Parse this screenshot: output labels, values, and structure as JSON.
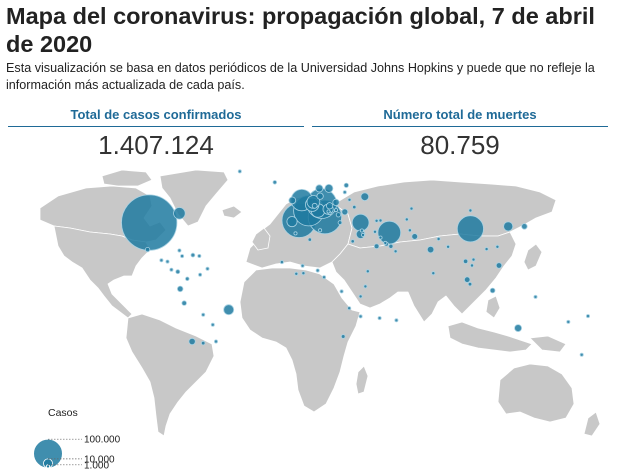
{
  "title": "Mapa del coronavirus: propagación global, 7 de abril de 2020",
  "subtitle": "Esta visualización se basa en datos periódicos de la Universidad Johns Hopkins y puede que no refleje la información más actualizada de cada país.",
  "stats": {
    "cases": {
      "label": "Total de casos confirmados",
      "value": "1.407.124"
    },
    "deaths": {
      "label": "Número total de muertes",
      "value": "80.759"
    }
  },
  "legend": {
    "title": "Casos",
    "items": [
      {
        "label": "100.000",
        "value": 100000
      },
      {
        "label": "10.000",
        "value": 10000
      },
      {
        "label": "1.000",
        "value": 1000
      }
    ]
  },
  "colors": {
    "land": "#c8c8c8",
    "bubble": "#1f7aa0",
    "bubble_stroke": "#a9d2e3",
    "header": "#1f6a97"
  },
  "bubbles": [
    {
      "name": "Estados Unidos",
      "lon": -98,
      "lat": 39,
      "value": 370000
    },
    {
      "name": "Canadá",
      "lon": -79,
      "lat": 45,
      "value": 16500
    },
    {
      "name": "México",
      "lon": -99,
      "lat": 22,
      "value": 2400
    },
    {
      "name": "Brasil",
      "lon": -48,
      "lat": -14,
      "value": 12200
    },
    {
      "name": "Chile",
      "lon": -71,
      "lat": -33,
      "value": 5100
    },
    {
      "name": "Ecuador",
      "lon": -78.5,
      "lat": -1.5,
      "value": 3700
    },
    {
      "name": "Perú",
      "lon": -76,
      "lat": -10,
      "value": 2600
    },
    {
      "name": "Argentina",
      "lon": -64,
      "lat": -34,
      "value": 1600
    },
    {
      "name": "Colombia",
      "lon": -74,
      "lat": 4.5,
      "value": 1580
    },
    {
      "name": "Panamá",
      "lon": -80,
      "lat": 8.8,
      "value": 1990
    },
    {
      "name": "República Dominicana",
      "lon": -70.5,
      "lat": 18.7,
      "value": 1750
    },
    {
      "name": "Venezuela",
      "lon": -66,
      "lat": 7,
      "value": 167
    },
    {
      "name": "Cuba",
      "lon": -79,
      "lat": 21.5,
      "value": 350
    },
    {
      "name": "Bolivia",
      "lon": -64,
      "lat": -17,
      "value": 200
    },
    {
      "name": "Uruguay",
      "lon": -56,
      "lat": -33,
      "value": 420
    },
    {
      "name": "Paraguay",
      "lon": -58,
      "lat": -23,
      "value": 110
    },
    {
      "name": "España",
      "lon": -3.7,
      "lat": 40.4,
      "value": 141000
    },
    {
      "name": "Italia",
      "lon": 12.5,
      "lat": 42.5,
      "value": 135500
    },
    {
      "name": "Alemania",
      "lon": 10.5,
      "lat": 51.2,
      "value": 107600
    },
    {
      "name": "Francia",
      "lon": 2.3,
      "lat": 46.6,
      "value": 110000
    },
    {
      "name": "Reino Unido",
      "lon": -2,
      "lat": 53.5,
      "value": 55200
    },
    {
      "name": "Turquía",
      "lon": 35,
      "lat": 39,
      "value": 34100
    },
    {
      "name": "Irán",
      "lon": 53,
      "lat": 32.5,
      "value": 62600
    },
    {
      "name": "Suiza",
      "lon": 8.2,
      "lat": 46.8,
      "value": 22200
    },
    {
      "name": "Bélgica",
      "lon": 4.5,
      "lat": 50.6,
      "value": 22200
    },
    {
      "name": "Países Bajos",
      "lon": 5.3,
      "lat": 52.3,
      "value": 19600
    },
    {
      "name": "Austria",
      "lon": 14.5,
      "lat": 47.6,
      "value": 12600
    },
    {
      "name": "Portugal",
      "lon": -8.2,
      "lat": 39.6,
      "value": 12400
    },
    {
      "name": "Suecia",
      "lon": 15,
      "lat": 61,
      "value": 7700
    },
    {
      "name": "Noruega",
      "lon": 9,
      "lat": 61,
      "value": 6100
    },
    {
      "name": "Dinamarca",
      "lon": 9.5,
      "lat": 56,
      "value": 5000
    },
    {
      "name": "Irlanda",
      "lon": -8,
      "lat": 53.3,
      "value": 5700
    },
    {
      "name": "Polonia",
      "lon": 19.5,
      "lat": 52,
      "value": 4800
    },
    {
      "name": "Chequia",
      "lon": 15.5,
      "lat": 49.8,
      "value": 4800
    },
    {
      "name": "Rumanía",
      "lon": 25,
      "lat": 45.9,
      "value": 4400
    },
    {
      "name": "Finlandia",
      "lon": 26,
      "lat": 63,
      "value": 2300
    },
    {
      "name": "Grecia",
      "lon": 22,
      "lat": 39,
      "value": 1800
    },
    {
      "name": "Ucrania",
      "lon": 31,
      "lat": 49,
      "value": 1460
    },
    {
      "name": "Serbia",
      "lon": 21,
      "lat": 44,
      "value": 2400
    },
    {
      "name": "Hungría",
      "lon": 19.5,
      "lat": 47,
      "value": 800
    },
    {
      "name": "Bielorrusia",
      "lon": 28,
      "lat": 53.7,
      "value": 1000
    },
    {
      "name": "Rusia (Moscú)",
      "lon": 37.6,
      "lat": 55.7,
      "value": 7500
    },
    {
      "name": "Israel",
      "lon": 35,
      "lat": 31.5,
      "value": 9000
    },
    {
      "name": "Arabia Saudí",
      "lon": 45,
      "lat": 24,
      "value": 2750
    },
    {
      "name": "Emiratos Árabes Unidos",
      "lon": 54,
      "lat": 24,
      "value": 2100
    },
    {
      "name": "Qatar",
      "lon": 51.2,
      "lat": 25.3,
      "value": 2000
    },
    {
      "name": "Pakistán",
      "lon": 69,
      "lat": 30,
      "value": 4000
    },
    {
      "name": "India",
      "lon": 79,
      "lat": 22,
      "value": 5300
    },
    {
      "name": "Egipto",
      "lon": 30,
      "lat": 27,
      "value": 1450
    },
    {
      "name": "Argelia",
      "lon": 3,
      "lat": 28,
      "value": 1470
    },
    {
      "name": "Marruecos",
      "lon": -6,
      "lat": 32,
      "value": 1200
    },
    {
      "name": "Kazajistán",
      "lon": 67,
      "lat": 48,
      "value": 700
    },
    {
      "name": "China",
      "lon": 104,
      "lat": 35,
      "value": 82700
    },
    {
      "name": "Corea del Sur",
      "lon": 127.8,
      "lat": 36.5,
      "value": 10300
    },
    {
      "name": "Japón",
      "lon": 138,
      "lat": 36.5,
      "value": 3900
    },
    {
      "name": "Filipinas",
      "lon": 122,
      "lat": 12.5,
      "value": 3700
    },
    {
      "name": "Malasia",
      "lon": 102,
      "lat": 4,
      "value": 3800
    },
    {
      "name": "Indonesia",
      "lon": 118,
      "lat": -2.5,
      "value": 2700
    },
    {
      "name": "Tailandia",
      "lon": 101,
      "lat": 15,
      "value": 2250
    },
    {
      "name": "Singapur",
      "lon": 103.8,
      "lat": 1.35,
      "value": 1480
    },
    {
      "name": "Australia",
      "lon": 134,
      "lat": -25,
      "value": 5800
    },
    {
      "name": "Nueva Zelanda",
      "lon": 174,
      "lat": -41,
      "value": 1160
    },
    {
      "name": "Sudáfrica",
      "lon": 24,
      "lat": -30,
      "value": 1680
    },
    {
      "name": "Camerún",
      "lon": 12,
      "lat": 5.5,
      "value": 650
    },
    {
      "name": "Costa de Marfil",
      "lon": -5.5,
      "lat": 7.5,
      "value": 300
    },
    {
      "name": "Ghana",
      "lon": -1,
      "lat": 7.9,
      "value": 300
    },
    {
      "name": "Nigeria",
      "lon": 8,
      "lat": 9.5,
      "value": 250
    },
    {
      "name": "Senegal",
      "lon": -14.5,
      "lat": 14.5,
      "value": 230
    },
    {
      "name": "Túnez",
      "lon": 9.5,
      "lat": 34,
      "value": 600
    },
    {
      "name": "Burkina Faso",
      "lon": -1.5,
      "lat": 12.3,
      "value": 360
    },
    {
      "name": "Kenia",
      "lon": 38,
      "lat": 0,
      "value": 170
    },
    {
      "name": "Islandia",
      "lon": -19,
      "lat": 65,
      "value": 1600
    },
    {
      "name": "Irak",
      "lon": 44,
      "lat": 33,
      "value": 1100
    },
    {
      "name": "Kuwait",
      "lon": 47.5,
      "lat": 29.3,
      "value": 740
    },
    {
      "name": "Bahréin",
      "lon": 50.5,
      "lat": 26,
      "value": 750
    },
    {
      "name": "Afganistán",
      "lon": 66,
      "lat": 34,
      "value": 420
    },
    {
      "name": "Bangladés",
      "lon": 90,
      "lat": 23.7,
      "value": 160
    },
    {
      "name": "Sri Lanka",
      "lon": 80.7,
      "lat": 7.9,
      "value": 180
    },
    {
      "name": "Vietnam",
      "lon": 106,
      "lat": 16,
      "value": 250
    },
    {
      "name": "Taiwán",
      "lon": 121,
      "lat": 23.7,
      "value": 380
    },
    {
      "name": "Hong Kong",
      "lon": 114.2,
      "lat": 22.3,
      "value": 930
    },
    {
      "name": "Croacia",
      "lon": 15.5,
      "lat": 45.1,
      "value": 1300
    },
    {
      "name": "Eslovenia",
      "lon": 14.8,
      "lat": 46.1,
      "value": 1090
    },
    {
      "name": "Estonia",
      "lon": 25,
      "lat": 58.6,
      "value": 1150
    },
    {
      "name": "Luxemburgo",
      "lon": 6.1,
      "lat": 49.8,
      "value": 2900
    },
    {
      "name": "Uzbekistán",
      "lon": 64,
      "lat": 41,
      "value": 450
    },
    {
      "name": "Azerbaiyán",
      "lon": 47.5,
      "lat": 40.3,
      "value": 640
    },
    {
      "name": "Armenia",
      "lon": 45,
      "lat": 40.1,
      "value": 850
    },
    {
      "name": "Omán",
      "lon": 57,
      "lat": 21,
      "value": 370
    },
    {
      "name": "Jordania",
      "lon": 36.5,
      "lat": 31,
      "value": 350
    },
    {
      "name": "Líbano",
      "lon": 35.8,
      "lat": 33.9,
      "value": 540
    },
    {
      "name": "Guatemala",
      "lon": -90.3,
      "lat": 15.6,
      "value": 70
    },
    {
      "name": "Honduras",
      "lon": -86.5,
      "lat": 14.8,
      "value": 300
    },
    {
      "name": "Costa Rica",
      "lon": -84,
      "lat": 10,
      "value": 450
    },
    {
      "name": "Puerto Rico",
      "lon": -66.5,
      "lat": 18.2,
      "value": 520
    },
    {
      "name": "Madagascar",
      "lon": 46.9,
      "lat": -19,
      "value": 90
    },
    {
      "name": "Mauricio",
      "lon": 57.5,
      "lat": -20.3,
      "value": 270
    },
    {
      "name": "Congo (RDC)",
      "lon": 23,
      "lat": -3,
      "value": 180
    },
    {
      "name": "Tanzania",
      "lon": 35,
      "lat": -6,
      "value": 24
    },
    {
      "name": "Etiopía",
      "lon": 39.5,
      "lat": 9,
      "value": 50
    },
    {
      "name": "Fiyi",
      "lon": 178,
      "lat": -17.8,
      "value": 15
    },
    {
      "name": "Nueva Caledonia",
      "lon": 165.6,
      "lat": -21.3,
      "value": 18
    },
    {
      "name": "Mongolia",
      "lon": 104,
      "lat": 46.8,
      "value": 15
    },
    {
      "name": "Nepal",
      "lon": 84,
      "lat": 28.4,
      "value": 9
    },
    {
      "name": "Camboya",
      "lon": 105,
      "lat": 12.5,
      "value": 115
    },
    {
      "name": "Papúa Nueva Guinea",
      "lon": 145,
      "lat": -6.3,
      "value": 2
    },
    {
      "name": "Groenlandia",
      "lon": -41,
      "lat": 72,
      "value": 11
    },
    {
      "name": "Jamaica",
      "lon": -77.3,
      "lat": 18.1,
      "value": 60
    },
    {
      "name": "Trinidad y Tobago",
      "lon": -61.3,
      "lat": 10.5,
      "value": 105
    },
    {
      "name": "Mozambique",
      "lon": 35,
      "lat": -18,
      "value": 10
    },
    {
      "name": "Zambia",
      "lon": 27.8,
      "lat": -13.1,
      "value": 39
    }
  ]
}
